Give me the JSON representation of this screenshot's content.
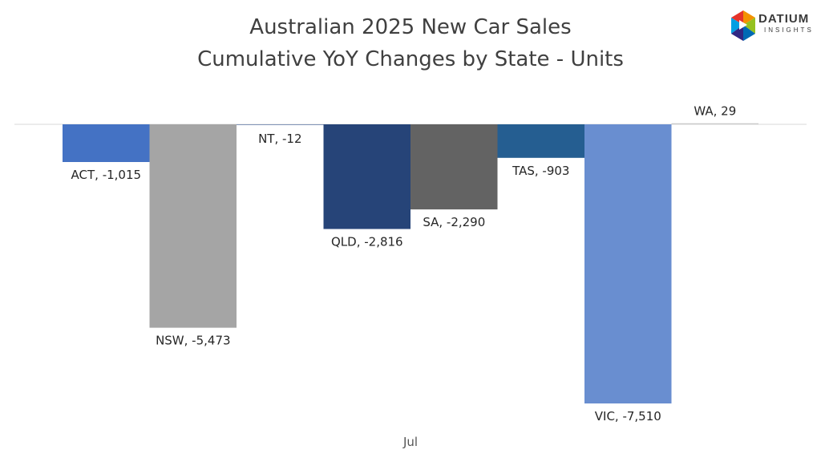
{
  "brand": {
    "name": "DATIUM",
    "sub": "INSIGHTS"
  },
  "chart_data": {
    "type": "bar",
    "title_line1": "Australian 2025 New Car Sales",
    "title_line2": "Cumulative YoY Changes by State - Units",
    "xlabel": "",
    "ylabel": "",
    "x_tick": "Jul",
    "ylim": [
      -7800,
      100
    ],
    "grid": false,
    "legend": "none",
    "series": [
      {
        "name": "ACT",
        "value": -1015,
        "label": "ACT, -1,015",
        "color": "#4472C4"
      },
      {
        "name": "NSW",
        "value": -5473,
        "label": "NSW, -5,473",
        "color": "#A5A5A5"
      },
      {
        "name": "NT",
        "value": -12,
        "label": "NT, -12",
        "color": "#2E4F8A"
      },
      {
        "name": "QLD",
        "value": -2816,
        "label": "QLD, -2,816",
        "color": "#264478"
      },
      {
        "name": "SA",
        "value": -2290,
        "label": "SA, -2,290",
        "color": "#636363"
      },
      {
        "name": "TAS",
        "value": -903,
        "label": "TAS, -903",
        "color": "#255E91"
      },
      {
        "name": "VIC",
        "value": -7510,
        "label": "VIC, -7,510",
        "color": "#698ED0"
      },
      {
        "name": "WA",
        "value": 29,
        "label": "WA, 29",
        "color": "#C9C9C9"
      }
    ]
  }
}
